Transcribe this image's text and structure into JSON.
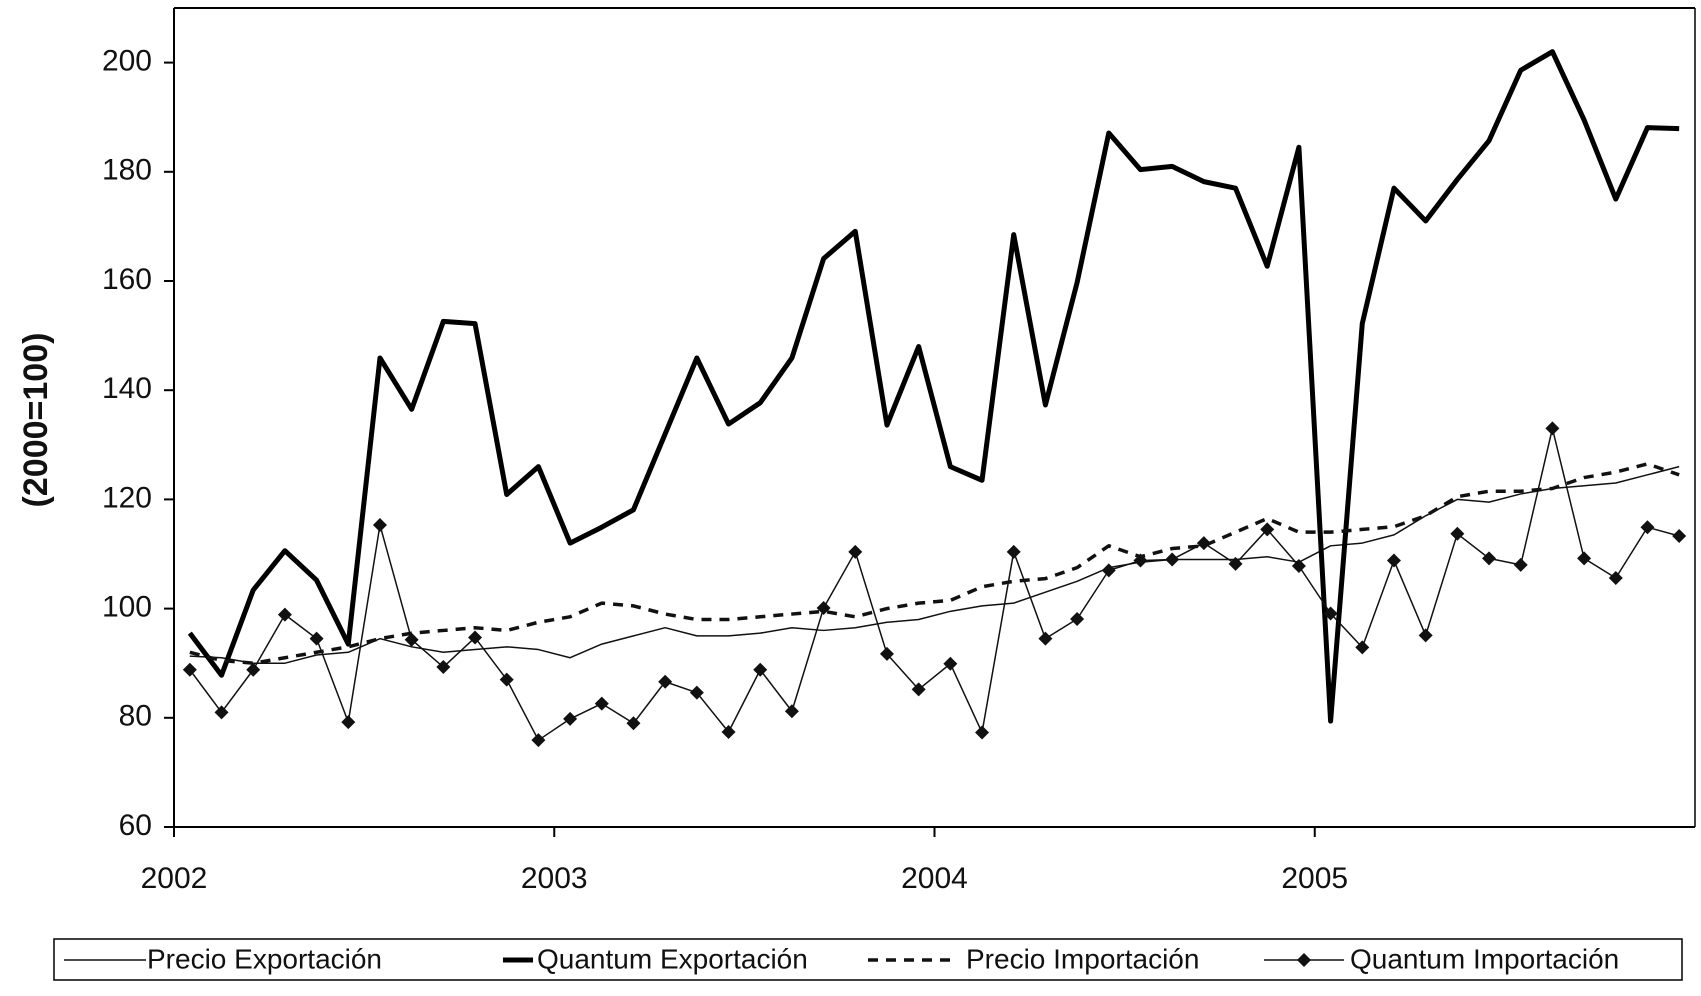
{
  "chart_data": {
    "type": "line",
    "y_label": "(2000=100)",
    "categories": [
      "2002",
      null,
      null,
      null,
      null,
      null,
      null,
      null,
      null,
      null,
      null,
      null,
      "2003",
      null,
      null,
      null,
      null,
      null,
      null,
      null,
      null,
      null,
      null,
      null,
      "2004",
      null,
      null,
      null,
      null,
      null,
      null,
      null,
      null,
      null,
      null,
      null,
      "2005",
      null,
      null,
      null,
      null,
      null,
      null,
      null,
      null,
      null,
      null,
      null
    ],
    "ylim": [
      60,
      210
    ],
    "yticks": [
      60,
      80,
      100,
      120,
      140,
      160,
      180,
      200
    ],
    "series": [
      {
        "name": "Precio Exportación",
        "color": "#111111",
        "line_width": 1.5,
        "dash": false,
        "marker": null,
        "values": [
          91.3,
          91,
          90,
          90,
          91.5,
          92,
          94.5,
          93,
          92,
          92.5,
          93,
          92.5,
          91,
          93.5,
          95,
          96.5,
          95,
          95,
          95.5,
          96.5,
          96,
          96.5,
          97.5,
          98,
          99.5,
          100.5,
          101,
          103,
          105,
          107.5,
          108.5,
          109,
          109,
          109,
          109.5,
          108.5,
          111.5,
          112,
          113.5,
          117,
          120,
          119.5,
          121,
          122,
          122.5,
          123,
          124.5,
          126
        ]
      },
      {
        "name": "Quantum Exportación",
        "color": "#000000",
        "line_width": 5,
        "dash": false,
        "marker": null,
        "values": [
          95.5,
          87.8,
          103.4,
          110.6,
          105.2,
          93.5,
          145.9,
          136.5,
          152.6,
          152.2,
          120.9,
          126,
          112,
          114.9,
          118.1,
          132,
          145.9,
          133.8,
          137.7,
          145.9,
          164.1,
          169.1,
          133.6,
          148,
          126,
          123.5,
          168.5,
          137.3,
          159.7,
          187.1,
          180.4,
          181,
          178.2,
          177,
          162.7,
          184.5,
          79.4,
          152.2,
          177,
          171,
          178.6,
          185.7,
          198.6,
          202,
          189.5,
          175,
          188.1,
          187.9
        ]
      },
      {
        "name": "Precio Importación",
        "color": "#111111",
        "line_width": 3.5,
        "dash": true,
        "marker": null,
        "values": [
          92,
          90.5,
          90,
          91,
          92,
          93,
          94.5,
          95.5,
          96,
          96.5,
          96,
          97.5,
          98.5,
          101,
          100.5,
          99,
          98,
          98,
          98.5,
          99,
          99.5,
          98.5,
          100,
          101,
          101.5,
          104,
          105,
          105.5,
          107.5,
          111.5,
          109.5,
          111,
          111.5,
          114,
          116.5,
          114,
          114,
          114.5,
          115,
          117,
          120.5,
          121.5,
          121.5,
          122,
          124,
          125,
          126.5,
          124.5
        ]
      },
      {
        "name": "Quantum Importación",
        "color": "#111111",
        "line_width": 1.5,
        "dash": false,
        "marker": "diamond",
        "values": [
          88.8,
          81,
          88.8,
          98.9,
          94.5,
          79.2,
          115.3,
          94.3,
          89.3,
          94.7,
          87,
          75.9,
          79.8,
          82.6,
          79,
          86.6,
          84.6,
          77.4,
          88.8,
          81.2,
          100.1,
          110.4,
          91.7,
          85.2,
          89.9,
          77.3,
          110.4,
          94.5,
          98.1,
          107,
          108.8,
          109,
          112,
          108.2,
          114.5,
          107.8,
          99.1,
          92.9,
          108.8,
          95.1,
          113.7,
          109.2,
          108,
          133,
          109.2,
          105.6,
          114.9,
          113.3
        ]
      }
    ]
  }
}
